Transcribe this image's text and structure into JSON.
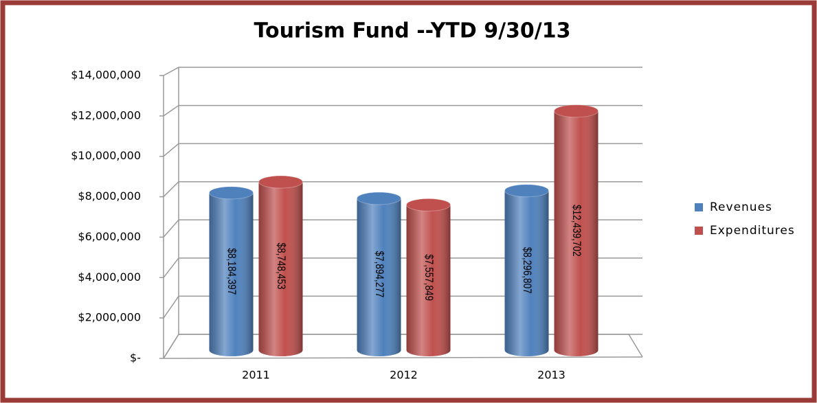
{
  "chart_data": {
    "type": "bar",
    "title": "Tourism Fund --YTD 9/30/13",
    "categories": [
      "2011",
      "2012",
      "2013"
    ],
    "series": [
      {
        "name": "Revenues",
        "color": "#4f81bd",
        "values": [
          8184397,
          7894277,
          8296807
        ],
        "value_labels": [
          "$8,184,397",
          "$7,894,277",
          "$8,296,807"
        ]
      },
      {
        "name": "Expenditures",
        "color": "#c0504d",
        "values": [
          8748453,
          7557849,
          12439702
        ],
        "value_labels": [
          "$8,748,453",
          "$7,557,849",
          "$12,439,702"
        ]
      }
    ],
    "ylim": [
      0,
      14000000
    ],
    "yticks": [
      {
        "value": 0,
        "label": "$-"
      },
      {
        "value": 2000000,
        "label": "$2,000,000"
      },
      {
        "value": 4000000,
        "label": "$4,000,000"
      },
      {
        "value": 6000000,
        "label": "$6,000,000"
      },
      {
        "value": 8000000,
        "label": "$8,000,000"
      },
      {
        "value": 10000000,
        "label": "$10,000,000"
      },
      {
        "value": 12000000,
        "label": "$12,000,000"
      },
      {
        "value": 14000000,
        "label": "$14,000,000"
      }
    ],
    "grid": true,
    "legend": "right"
  }
}
